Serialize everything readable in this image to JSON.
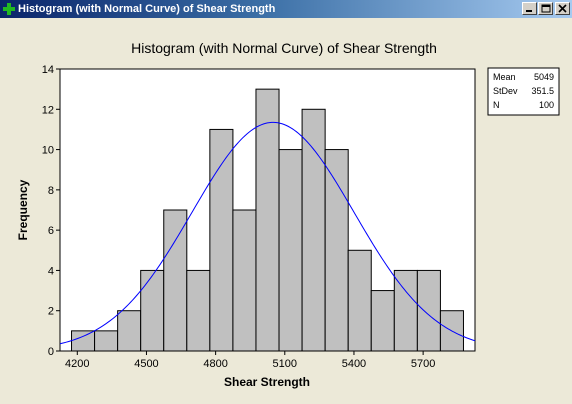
{
  "window": {
    "title": "Histogram (with Normal Curve) of Shear Strength",
    "accent": "#0a246a"
  },
  "chart_data": {
    "type": "bar",
    "title": "Histogram (with Normal Curve) of Shear Strength",
    "xlabel": "Shear Strength",
    "ylabel": "Frequency",
    "bin_edges": [
      4175,
      4275,
      4375,
      4475,
      4575,
      4675,
      4775,
      4875,
      4975,
      5075,
      5175,
      5275,
      5375,
      5475,
      5575,
      5675,
      5775,
      5875
    ],
    "counts": [
      1,
      1,
      2,
      4,
      7,
      4,
      11,
      7,
      13,
      10,
      12,
      10,
      5,
      3,
      4,
      4,
      2
    ],
    "xlim": [
      4125,
      5925
    ],
    "ylim": [
      0,
      14
    ],
    "xticks": [
      4200,
      4500,
      4800,
      5100,
      5400,
      5700
    ],
    "yticks": [
      0,
      2,
      4,
      6,
      8,
      10,
      12,
      14
    ],
    "normal_curve": {
      "mean": 5049,
      "stdev": 351.5,
      "n": 100,
      "bin_width": 100,
      "color": "#0000ff"
    },
    "bar_fill": "#c0c0c0",
    "grid": false,
    "legend_position": "top-right",
    "stats": [
      {
        "label": "Mean",
        "value": "5049"
      },
      {
        "label": "StDev",
        "value": "351.5"
      },
      {
        "label": "N",
        "value": "100"
      }
    ]
  }
}
